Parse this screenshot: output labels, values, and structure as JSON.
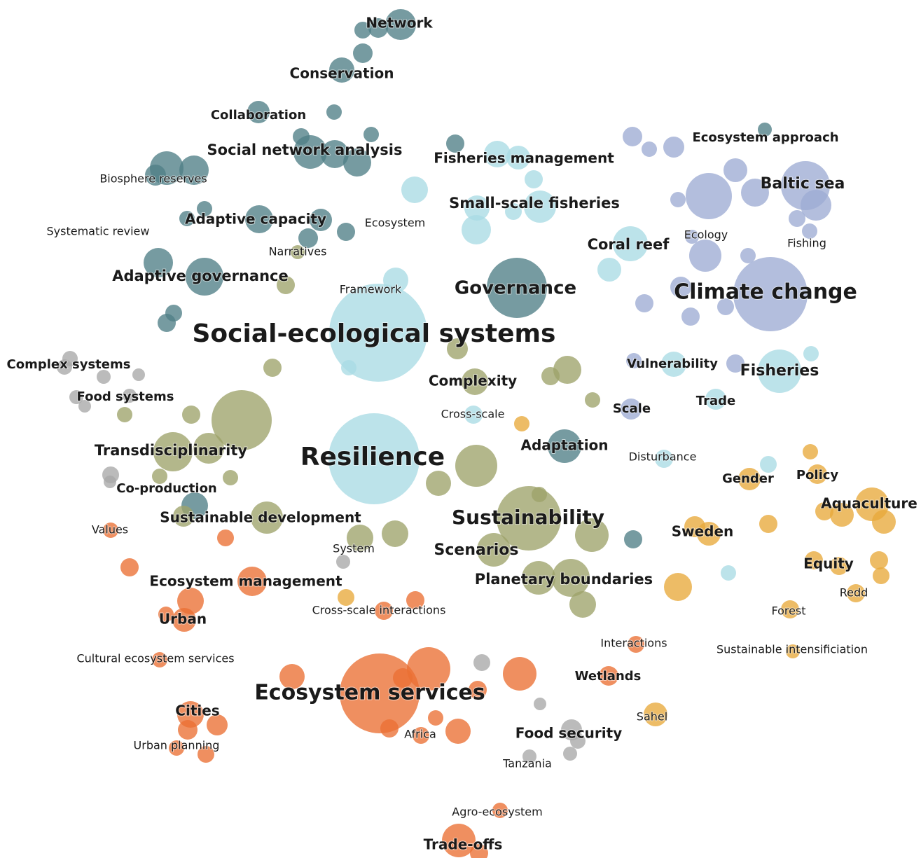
{
  "colors": {
    "teal": "#4f7f86",
    "cyan": "#a9dbe4",
    "periwinkle": "#9eacd4",
    "olive": "#9ea36a",
    "orange": "#ea6f33",
    "gold": "#e8a93b",
    "gray": "#a8a8a8"
  },
  "clusters": [
    {
      "id": "teal",
      "color": "#4f7f86",
      "terms": [
        "Network",
        "Conservation",
        "Collaboration",
        "Social network analysis",
        "Biosphere reserves",
        "Adaptive capacity",
        "Systematic review",
        "Narratives",
        "Adaptive governance",
        "Governance",
        "Adaptation"
      ]
    },
    {
      "id": "cyan",
      "color": "#a9dbe4",
      "terms": [
        "Fisheries management",
        "Small-scale fisheries",
        "Ecosystem",
        "Framework",
        "Social-ecological systems",
        "Resilience",
        "Coral reef",
        "Fisheries",
        "Cross-scale",
        "Disturbance"
      ]
    },
    {
      "id": "periwinkle",
      "color": "#9eacd4",
      "terms": [
        "Ecosystem approach",
        "Baltic sea",
        "Ecology",
        "Fishing",
        "Climate change",
        "Vulnerability",
        "Scale",
        "Trade"
      ]
    },
    {
      "id": "olive",
      "color": "#9ea36a",
      "terms": [
        "Complexity",
        "Transdisciplinarity",
        "Co-production",
        "Sustainable development",
        "System",
        "Sustainability",
        "Scenarios",
        "Planetary boundaries"
      ]
    },
    {
      "id": "gold",
      "color": "#e8a93b",
      "terms": [
        "Gender",
        "Policy",
        "Aquaculture",
        "Sweden",
        "Equity",
        "Redd",
        "Forest",
        "Sustainable intensificiation",
        "Sahel"
      ]
    },
    {
      "id": "orange",
      "color": "#ea6f33",
      "terms": [
        "Values",
        "Ecosystem management",
        "Cross-scale interactions",
        "Urban",
        "Cultural ecosystem services",
        "Ecosystem services",
        "Interactions",
        "Wetlands",
        "Cities",
        "Urban planning",
        "Africa",
        "Agro-ecosystem",
        "Trade-offs"
      ]
    },
    {
      "id": "gray",
      "color": "#a8a8a8",
      "terms": [
        "Complex systems",
        "Food systems",
        "Food security",
        "Tanzania"
      ]
    }
  ]
}
